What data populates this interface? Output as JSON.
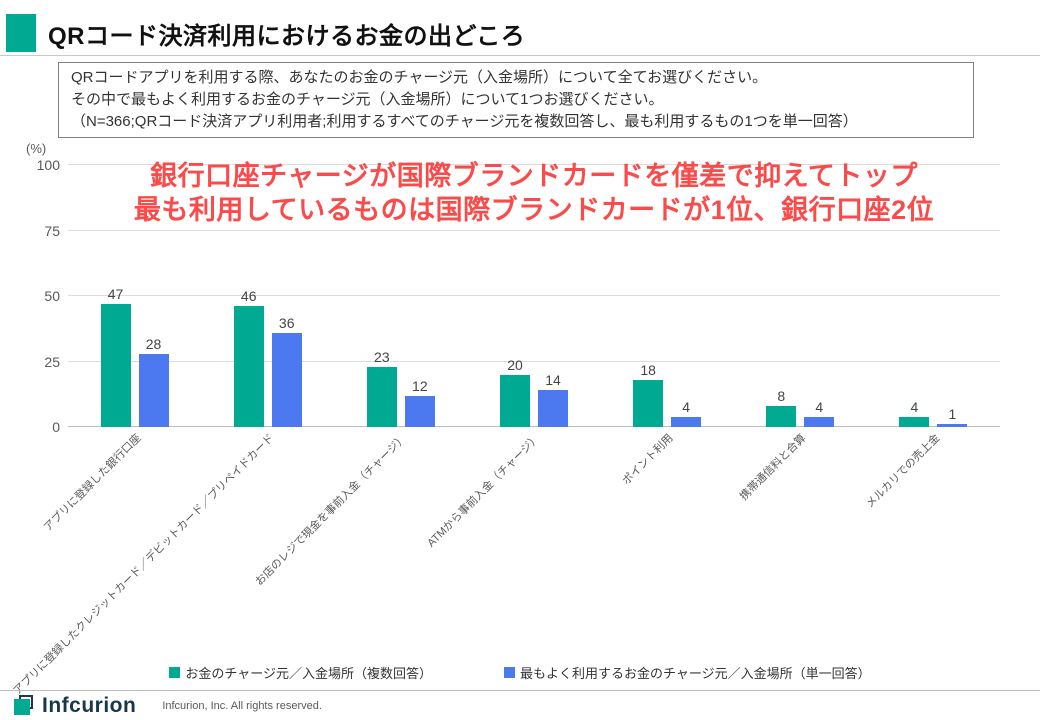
{
  "header": {
    "title": "QRコード決済利用におけるお金の出どころ",
    "accent_color": "#00A992"
  },
  "question_box": {
    "lines": [
      "QRコードアプリを利用する際、あなたのお金のチャージ元（入金場所）について全てお選びください。",
      "その中で最もよく利用するお金のチャージ元（入金場所）について1つお選びください。",
      "（N=366;QRコード決済アプリ利用者;利用するすべてのチャージ元を複数回答し、最も利用するもの1つを単一回答）"
    ]
  },
  "annotation": {
    "color": "#FA4B4B",
    "lines": [
      "銀行口座チャージが国際ブランドカードを僅差で抑えてトップ",
      "最も利用しているものは国際ブランドカードが1位、銀行口座2位"
    ]
  },
  "chart_data": {
    "type": "bar",
    "title": "QRコード決済利用におけるお金の出どころ",
    "unit_label": "(%)",
    "xlabel": "",
    "ylabel": "%",
    "ylim": [
      0,
      100
    ],
    "yticks": [
      0,
      25,
      50,
      75,
      100
    ],
    "grid": true,
    "legend_position": "bottom",
    "categories": [
      "アプリに登録した銀行口座",
      "アプリに登録したクレジットカード／デビットカード／プリペイドカード",
      "お店のレジで現金を事前入金（チャージ）",
      "ATMから事前入金（チャージ）",
      "ポイント利用",
      "携帯通信料と合算",
      "メルカリでの売上金"
    ],
    "series": [
      {
        "name": "お金のチャージ元／入金場所（複数回答）",
        "color": "#00A992",
        "values": [
          47,
          46,
          23,
          20,
          18,
          8,
          4
        ]
      },
      {
        "name": "最もよく利用するお金のチャージ元／入金場所（単一回答）",
        "color": "#4D79F0",
        "values": [
          28,
          36,
          12,
          14,
          4,
          4,
          1
        ]
      }
    ]
  },
  "footer": {
    "logo_text": "Infcurion",
    "copyright": "Infcurion, Inc.  All rights reserved."
  }
}
